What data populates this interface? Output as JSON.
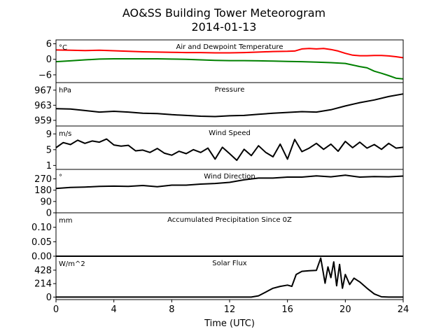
{
  "chart_data": {
    "type": "line",
    "title": "AO&SS Building Tower Meteorogram",
    "subtitle": "2014-01-13",
    "xlabel": "Time (UTC)",
    "xlim": [
      0,
      24
    ],
    "xticks": [
      0,
      4,
      8,
      12,
      16,
      20,
      24
    ],
    "xtick_labels": [
      "0",
      "4",
      "8",
      "12",
      "16",
      "20",
      "24"
    ],
    "panels": [
      {
        "id": "temp",
        "title": "Air and Dewpoint Temperature",
        "unit": "°C",
        "ylim": [
          -9,
          7.5
        ],
        "yticks": [
          6,
          0,
          -6
        ],
        "ytick_labels": [
          "6",
          "0",
          "−6"
        ],
        "series": [
          {
            "color": "#ff0000",
            "x": [
              0,
              1,
              2,
              3,
              4,
              5,
              6,
              7,
              8,
              9,
              10,
              11,
              12,
              13,
              14,
              15,
              16,
              16.5,
              17,
              17.5,
              18,
              18.5,
              19,
              19.5,
              20,
              20.5,
              21,
              21.5,
              22,
              22.5,
              23,
              23.5,
              24
            ],
            "y": [
              3.6,
              3.5,
              3.4,
              3.5,
              3.3,
              3.1,
              2.9,
              2.8,
              2.7,
              2.6,
              2.6,
              2.5,
              2.5,
              2.6,
              2.8,
              3.0,
              3.1,
              3.2,
              4.0,
              4.2,
              4.0,
              4.2,
              3.8,
              3.2,
              2.3,
              1.6,
              1.4,
              1.4,
              1.5,
              1.5,
              1.3,
              1.0,
              0.6
            ]
          },
          {
            "color": "#008000",
            "x": [
              0,
              1,
              2,
              3,
              4,
              5,
              6,
              7,
              8,
              9,
              10,
              11,
              12,
              13,
              14,
              15,
              16,
              17,
              18,
              19,
              20,
              20.5,
              21,
              21.5,
              22,
              22.5,
              23,
              23.5,
              24
            ],
            "y": [
              -0.9,
              -0.6,
              -0.2,
              0.1,
              0.2,
              0.2,
              0.2,
              0.2,
              0.1,
              0.0,
              -0.2,
              -0.4,
              -0.5,
              -0.5,
              -0.6,
              -0.7,
              -0.8,
              -0.9,
              -1.1,
              -1.3,
              -1.6,
              -2.2,
              -2.8,
              -3.3,
              -4.6,
              -5.4,
              -6.3,
              -7.3,
              -7.6
            ]
          }
        ]
      },
      {
        "id": "pressure",
        "title": "Pressure",
        "unit": "hPa",
        "ylim": [
          957.5,
          969
        ],
        "yticks": [
          967,
          963,
          959
        ],
        "ytick_labels": [
          "967",
          "963",
          "959"
        ],
        "series": [
          {
            "color": "#000000",
            "x": [
              0,
              1,
              2,
              3,
              4,
              5,
              6,
              7,
              8,
              9,
              10,
              11,
              12,
              13,
              14,
              15,
              16,
              17,
              18,
              19,
              20,
              21,
              22,
              23,
              24
            ],
            "y": [
              962.1,
              962.0,
              961.6,
              961.2,
              961.4,
              961.2,
              960.9,
              960.8,
              960.5,
              960.3,
              960.1,
              960.0,
              960.2,
              960.3,
              960.6,
              960.9,
              961.1,
              961.3,
              961.2,
              961.8,
              962.8,
              963.7,
              964.4,
              965.3,
              966.0
            ]
          }
        ]
      },
      {
        "id": "wind_speed",
        "title": "Wind Speed",
        "unit": "m/s",
        "ylim": [
          0,
          11
        ],
        "yticks": [
          9,
          5,
          1
        ],
        "ytick_labels": [
          "9",
          "5",
          "1"
        ],
        "series": [
          {
            "color": "#000000",
            "x": [
              0,
              0.5,
              1,
              1.5,
              2,
              2.5,
              3,
              3.5,
              4,
              4.5,
              5,
              5.5,
              6,
              6.5,
              7,
              7.5,
              8,
              8.5,
              9,
              9.5,
              10,
              10.5,
              11,
              11.5,
              12,
              12.5,
              13,
              13.5,
              14,
              14.5,
              15,
              15.5,
              16,
              16.5,
              17,
              17.5,
              18,
              18.5,
              19,
              19.5,
              20,
              20.5,
              21,
              21.5,
              22,
              22.5,
              23,
              23.5,
              24
            ],
            "y": [
              5.5,
              6.8,
              6.3,
              7.4,
              6.6,
              7.2,
              6.9,
              7.7,
              6.2,
              5.9,
              6.1,
              4.7,
              4.9,
              4.3,
              5.3,
              4.1,
              3.6,
              4.6,
              4.0,
              5.0,
              4.3,
              5.4,
              2.6,
              5.6,
              4.0,
              2.3,
              5.1,
              3.5,
              6.0,
              4.3,
              3.2,
              6.4,
              2.6,
              7.6,
              4.5,
              5.4,
              6.6,
              5.1,
              6.4,
              4.6,
              7.1,
              5.5,
              6.9,
              5.4,
              6.3,
              5.1,
              6.6,
              5.4,
              5.6
            ]
          }
        ]
      },
      {
        "id": "wind_direction",
        "title": "Wind Direction",
        "unit": "°",
        "ylim": [
          0,
          345
        ],
        "yticks": [
          270,
          180,
          90,
          0
        ],
        "ytick_labels": [
          "270",
          "180",
          "90",
          "0"
        ],
        "series": [
          {
            "color": "#000000",
            "x": [
              0,
              1,
              2,
              3,
              4,
              5,
              6,
              7,
              8,
              9,
              10,
              11,
              12,
              13,
              14,
              15,
              16,
              17,
              18,
              19,
              20,
              21,
              22,
              23,
              24
            ],
            "y": [
              193,
              202,
              205,
              210,
              212,
              210,
              217,
              207,
              220,
              220,
              228,
              233,
              242,
              262,
              276,
              276,
              284,
              284,
              294,
              286,
              299,
              284,
              288,
              286,
              292
            ]
          }
        ]
      },
      {
        "id": "precip",
        "title": "Accumulated Precipitation Since 0Z",
        "unit": "mm",
        "ylim": [
          0,
          0.15
        ],
        "yticks": [
          0.1,
          0.05,
          0.0
        ],
        "ytick_labels": [
          "0.10",
          "0.05",
          "0.00"
        ],
        "series": [
          {
            "color": "#000000",
            "x": [
              0,
              24
            ],
            "y": [
              0,
              0
            ]
          }
        ]
      },
      {
        "id": "solar",
        "title": "Solar Flux",
        "unit": "W/m^2",
        "ylim": [
          -40,
          650
        ],
        "yticks": [
          428,
          214,
          0
        ],
        "ytick_labels": [
          "428",
          "214",
          "0"
        ],
        "series": [
          {
            "color": "#000000",
            "x": [
              0,
              13.5,
              14,
              14.5,
              15,
              15.5,
              16,
              16.3,
              16.6,
              17,
              17.5,
              18,
              18.3,
              18.6,
              18.8,
              19,
              19.2,
              19.4,
              19.6,
              19.8,
              20,
              20.3,
              20.6,
              21,
              21.5,
              22,
              22.5,
              23,
              24
            ],
            "y": [
              0,
              0,
              20,
              80,
              140,
              170,
              190,
              170,
              360,
              410,
              420,
              425,
              620,
              220,
              480,
              310,
              560,
              180,
              520,
              140,
              360,
              200,
              300,
              240,
              140,
              50,
              5,
              0,
              0
            ]
          }
        ]
      }
    ]
  }
}
